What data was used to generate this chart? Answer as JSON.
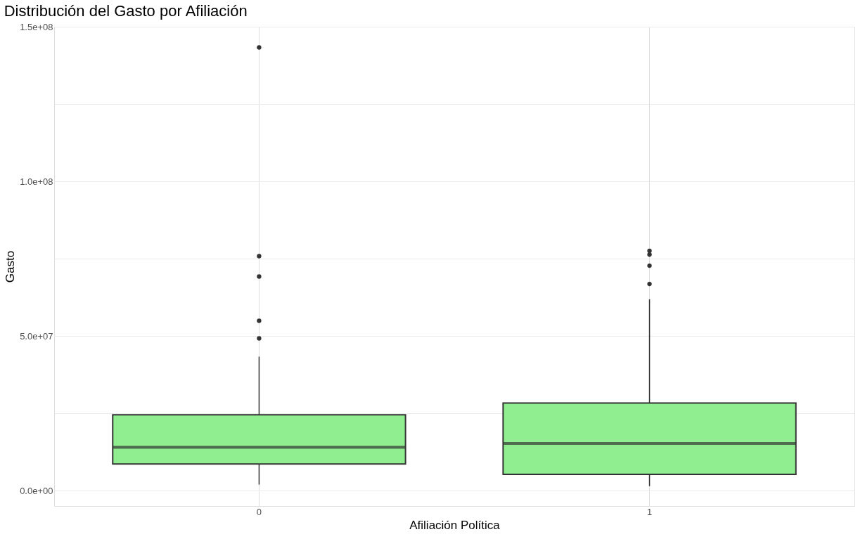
{
  "chart_data": {
    "type": "box",
    "title": "Distribución del Gasto por Afiliación",
    "xlabel": "Afiliación Política",
    "ylabel": "Gasto",
    "categories": [
      "0",
      "1"
    ],
    "series": [
      {
        "color": "#90ee90",
        "boxes": [
          {
            "low": 1900000,
            "q1": 8600000,
            "median": 14000000,
            "q3": 24500000,
            "high": 43300000,
            "outliers": [
              143300000,
              75800000,
              69200000,
              54900000,
              49200000
            ]
          },
          {
            "low": 1400000,
            "q1": 5200000,
            "median": 15200000,
            "q3": 28300000,
            "high": 61800000,
            "outliers": [
              77500000,
              76300000,
              72700000,
              66800000
            ]
          }
        ]
      }
    ],
    "ylim": [
      -5000000,
      150000000
    ],
    "yticks": [
      {
        "value": 0,
        "label": "0.0e+00"
      },
      {
        "value": 25000000,
        "label": null
      },
      {
        "value": 50000000,
        "label": "5.0e+07"
      },
      {
        "value": 75000000,
        "label": null
      },
      {
        "value": 100000000,
        "label": "1.0e+08"
      },
      {
        "value": 125000000,
        "label": null
      },
      {
        "value": 150000000,
        "label": "1.5e+08"
      }
    ],
    "grid": true
  }
}
